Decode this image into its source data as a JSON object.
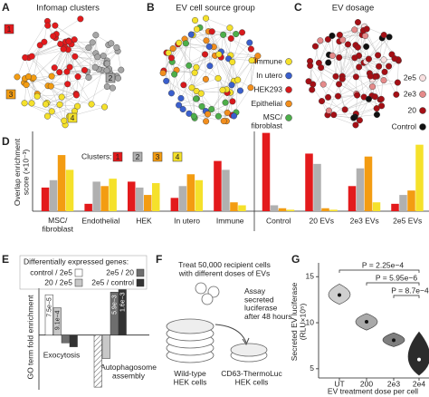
{
  "panel_A": {
    "letter": "A",
    "title": "Infomap clusters",
    "clusters": [
      {
        "label": "1",
        "color": "#e31a1c"
      },
      {
        "label": "2",
        "color": "#a6a6a6"
      },
      {
        "label": "3",
        "color": "#f39c12"
      },
      {
        "label": "4",
        "color": "#f5e12b"
      }
    ]
  },
  "panel_B": {
    "letter": "B",
    "title": "EV cell source group",
    "legend": [
      {
        "name": "Immune",
        "color": "#f5e12b"
      },
      {
        "name": "In utero",
        "color": "#3a5fcd"
      },
      {
        "name": "HEK293",
        "color": "#d7191c"
      },
      {
        "name": "Epithelial",
        "color": "#f28e1c"
      },
      {
        "name": "MSC/\nfibroblast",
        "color": "#4daf4a"
      }
    ]
  },
  "panel_C": {
    "letter": "C",
    "title": "EV dosage",
    "legend": [
      {
        "name": "2e5",
        "color": "#f8e0e0"
      },
      {
        "name": "2e3",
        "color": "#e58a8a"
      },
      {
        "name": "20",
        "color": "#a50f15"
      },
      {
        "name": "Control",
        "color": "#111111"
      }
    ]
  },
  "panel_F": {
    "letter": "F",
    "treat_text": "Treat 50,000 recipient cells\nwith different doses of EVs",
    "assay_text": "Assay\nsecreted\nluciferase\nafter 48 hours",
    "wildtype_label": "Wild-type\nHEK cells",
    "reporter_label": "CD63-ThermoLuc\nHEK cells"
  },
  "chart_data": [
    {
      "type": "bar",
      "letter": "D",
      "ylabel": "Overlap enrichment\nscore (×10⁻³)",
      "legend_title": "Clusters:",
      "categories": [
        "MSC/\nfibroblast",
        "Endothelial",
        "HEK",
        "In utero",
        "Immune",
        "Control",
        "20 EVs",
        "2e3 EVs",
        "2e5 EVs"
      ],
      "ylim": [
        0,
        2.7
      ],
      "series": [
        {
          "name": "1",
          "color": "#e31a1c",
          "values": [
            0.8,
            0.25,
            1.0,
            0.45,
            1.7,
            2.65,
            1.95,
            0.85,
            0.25
          ]
        },
        {
          "name": "2",
          "color": "#b0b0b0",
          "values": [
            1.05,
            1.0,
            0.8,
            0.85,
            1.4,
            0.2,
            1.6,
            1.45,
            0.55
          ]
        },
        {
          "name": "3",
          "color": "#f39c12",
          "values": [
            1.9,
            0.85,
            0.55,
            1.25,
            0.3,
            0.1,
            0.1,
            1.85,
            0.7
          ]
        },
        {
          "name": "4",
          "color": "#f5e12b",
          "values": [
            1.4,
            1.1,
            0.95,
            1.05,
            0.2,
            0.05,
            0.05,
            0.3,
            2.25
          ]
        }
      ]
    },
    {
      "type": "bar",
      "letter": "E",
      "ylabel": "GO term fold enrichment",
      "legend_title": "Differentially expressed genes:",
      "categories": [
        "Exocytosis",
        "Autophagosome\nassembly"
      ],
      "ylim": [
        -4.2,
        3.6
      ],
      "series": [
        {
          "name": "control / 2e5",
          "color": "#ffffff",
          "values": [
            3.1,
            -4.0
          ],
          "annotations": [
            "7.5e−5",
            null
          ]
        },
        {
          "name": "20 / 2e5",
          "color": "#c8c8c8",
          "values": [
            2.1,
            -1.8
          ],
          "annotations": [
            "9.1e−4",
            null
          ]
        },
        {
          "name": "2e5 / 20",
          "color": "#6e6e6e",
          "values": [
            -0.6,
            3.3
          ],
          "annotations": [
            null,
            "5.9e−3"
          ]
        },
        {
          "name": "2e5 / control",
          "color": "#333333",
          "values": [
            -0.9,
            3.5
          ],
          "annotations": [
            null,
            "1.6e−3"
          ]
        }
      ]
    },
    {
      "type": "violin",
      "letter": "G",
      "ylabel": "Secreted EV luciferase\n(RLU×10⁵)",
      "xlabel": "EV treatment dose per cell",
      "categories": [
        "UT",
        "200",
        "2e3",
        "2e4"
      ],
      "values": [
        13,
        10.1,
        8.1,
        6
      ],
      "ranges": [
        [
          12,
          14.2
        ],
        [
          9.2,
          11
        ],
        [
          7.4,
          8.9
        ],
        [
          4.3,
          9
        ]
      ],
      "colors": [
        "#cfcfcf",
        "#a9a9a9",
        "#7f7f7f",
        "#2b2b2b"
      ],
      "ylim": [
        4,
        16.5
      ],
      "yticks": [
        5,
        10,
        15
      ],
      "annotations": [
        "P = 2.25e−4",
        "P = 5.95e−6",
        "P = 8.7e−4"
      ]
    }
  ]
}
